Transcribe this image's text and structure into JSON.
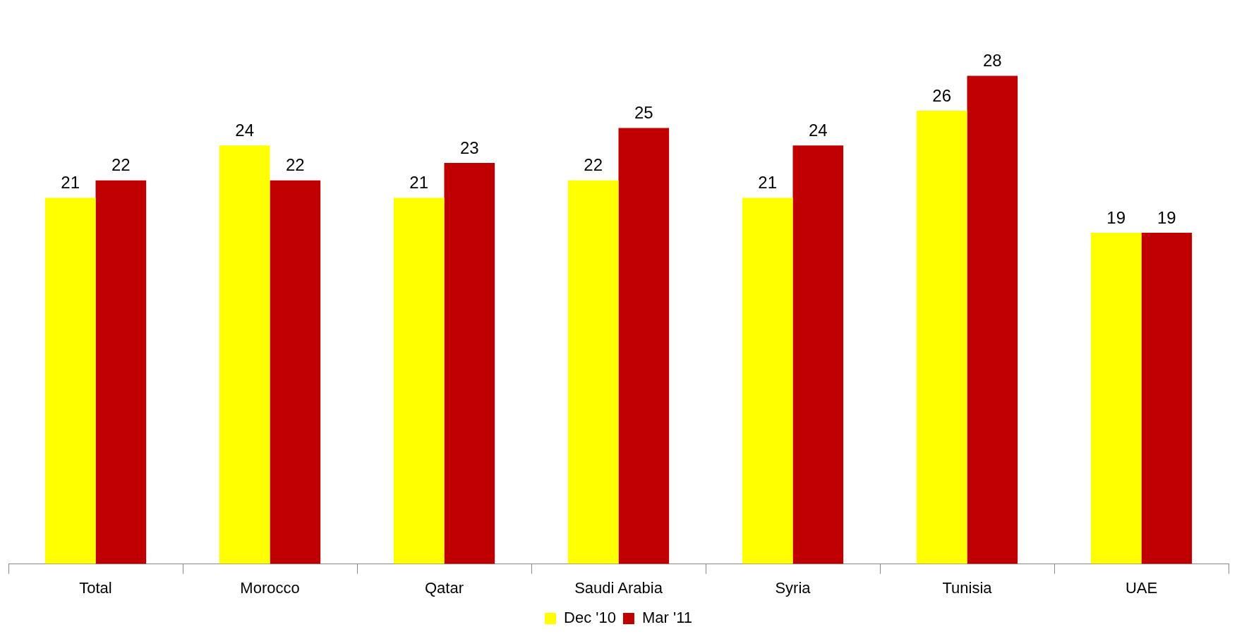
{
  "chart_data": {
    "type": "bar",
    "categories": [
      "Total",
      "Morocco",
      "Qatar",
      "Saudi Arabia",
      "Syria",
      "Tunisia",
      "UAE"
    ],
    "series": [
      {
        "name": "Dec '10",
        "color": "#ffff00",
        "values": [
          21,
          24,
          21,
          22,
          21,
          26,
          19
        ]
      },
      {
        "name": "Mar '11",
        "color": "#c00000",
        "values": [
          22,
          22,
          23,
          25,
          24,
          28,
          19
        ]
      }
    ],
    "data_labels": true,
    "legend": "bottom",
    "grid": false
  }
}
